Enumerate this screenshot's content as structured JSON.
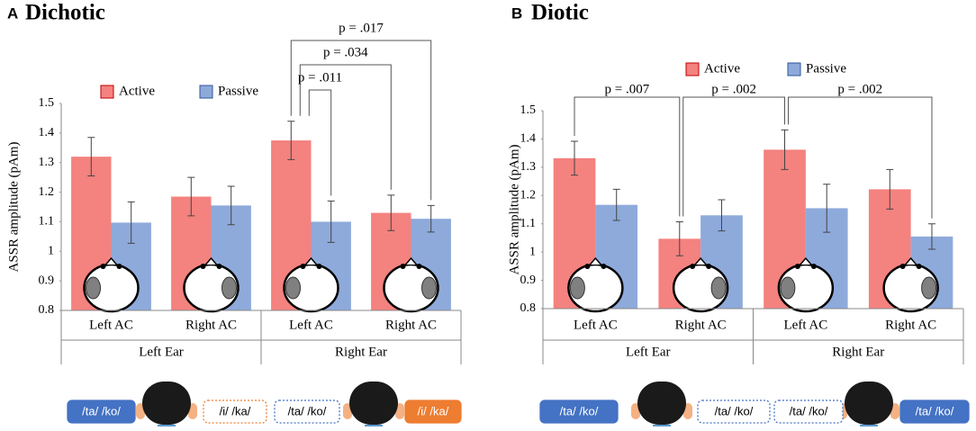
{
  "chart_data": [
    {
      "type": "bar",
      "panel_label": "A",
      "title": "Dichotic",
      "y_label": "ASSR amplitude (pAm)",
      "categories": [
        "Left AC",
        "Right AC",
        "Left AC",
        "Right AC"
      ],
      "groups": [
        "Left Ear",
        "Right Ear"
      ],
      "series": [
        {
          "name": "Active",
          "color": "#f4827f",
          "values": [
            1.32,
            1.185,
            1.375,
            1.13
          ],
          "errors": [
            0.065,
            0.065,
            0.065,
            0.06
          ]
        },
        {
          "name": "Passive",
          "color": "#8eaadb",
          "values": [
            1.097,
            1.155,
            1.1,
            1.11
          ],
          "errors": [
            0.07,
            0.065,
            0.07,
            0.045
          ]
        }
      ],
      "ylim": [
        0.8,
        1.5
      ],
      "yticks": [
        0.8,
        0.9,
        1,
        1.1,
        1.2,
        1.3,
        1.4,
        1.5
      ],
      "annotations": [
        "p = .017",
        "p = .034",
        "p = .011"
      ],
      "stimuli": [
        "/ta/ /ko/",
        "/i/ /ka/",
        "/ta/ /ko/",
        "/i/ /ka/"
      ]
    },
    {
      "type": "bar",
      "panel_label": "B",
      "title": "Diotic",
      "y_label": "ASSR amplitude (pAm)",
      "categories": [
        "Left AC",
        "Right AC",
        "Left AC",
        "Right AC"
      ],
      "groups": [
        "Left Ear",
        "Right Ear"
      ],
      "series": [
        {
          "name": "Active",
          "color": "#f4827f",
          "values": [
            1.332,
            1.047,
            1.362,
            1.222
          ],
          "errors": [
            0.06,
            0.06,
            0.07,
            0.07
          ]
        },
        {
          "name": "Passive",
          "color": "#8eaadb",
          "values": [
            1.167,
            1.13,
            1.155,
            1.055
          ],
          "errors": [
            0.055,
            0.055,
            0.085,
            0.045
          ]
        }
      ],
      "ylim": [
        0.8,
        1.5
      ],
      "yticks": [
        0.8,
        0.9,
        1,
        1.1,
        1.2,
        1.3,
        1.4,
        1.5
      ],
      "annotations": [
        "p = .007",
        "p = .002",
        "p = .002"
      ],
      "stimuli": [
        "/ta/ /ko/",
        "/ta/ /ko/",
        "/ta/ /ko/",
        "/ta/ /ko/"
      ]
    }
  ]
}
